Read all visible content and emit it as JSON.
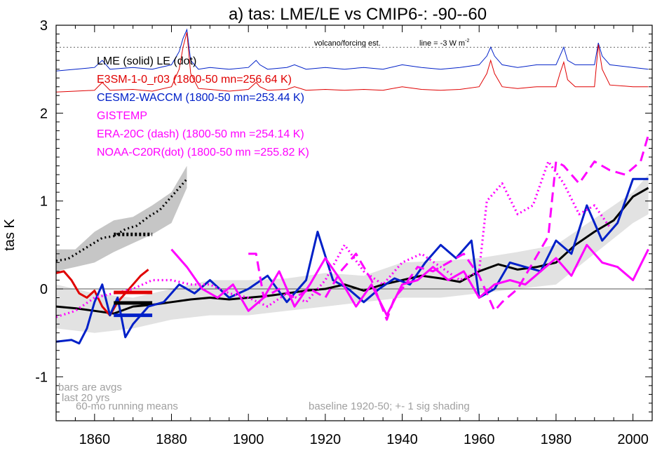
{
  "chart_data": {
    "type": "line",
    "title": "a) tas: LME/LE vs CMIP6-: -90--60",
    "ylabel": "tas K",
    "xlabel": "",
    "xlim": [
      1850,
      2005
    ],
    "ylim": [
      -1.5,
      3.0
    ],
    "x_ticks": [
      1860,
      1880,
      1900,
      1920,
      1940,
      1960,
      1980,
      2000
    ],
    "y_ticks": [
      -1,
      0,
      1,
      2,
      3
    ],
    "reference_line_y": 0,
    "forcing_threshold_y": 2.75,
    "forcing_label": "volcano/forcing est.",
    "forcing_line_label": "line = -3 W m",
    "forcing_line_label_sup": "-2",
    "legend": [
      {
        "text": "LME (solid)   LE (dot)",
        "color": "#000000"
      },
      {
        "text": "E3SM-1-0_r03 (1800-50 mn=256.64 K)",
        "color": "#e00000"
      },
      {
        "text": "CESM2-WACCM (1800-50 mn=253.44 K)",
        "color": "#0020c8"
      },
      {
        "text": "GISTEMP",
        "color": "#ff00ff"
      },
      {
        "text": "ERA-20C (dash) (1800-50 mn =254.14 K)",
        "color": "#ff00ff"
      },
      {
        "text": "NOAA-C20R(dot) (1800-50 mn =255.82 K)",
        "color": "#ff00ff"
      }
    ],
    "notes": {
      "bars": "bars are avgs",
      "bars2": "last 20 yrs",
      "running": "60-mo running means",
      "baseline": "baseline 1920-50; +- 1 sig shading"
    },
    "series": [
      {
        "name": "LME (solid)",
        "color": "#000000",
        "style": "solid",
        "x": [
          1850,
          1855,
          1860,
          1865,
          1870,
          1875,
          1880,
          1885,
          1890,
          1895,
          1900,
          1905,
          1910,
          1915,
          1920,
          1925,
          1930,
          1935,
          1940,
          1945,
          1950,
          1955,
          1960,
          1965,
          1970,
          1975,
          1980,
          1985,
          1990,
          1995,
          2000,
          2004
        ],
        "y": [
          -0.2,
          -0.22,
          -0.25,
          -0.28,
          -0.2,
          -0.18,
          -0.15,
          -0.12,
          -0.1,
          -0.12,
          -0.1,
          -0.08,
          -0.05,
          -0.02,
          0.0,
          0.05,
          -0.02,
          0.05,
          0.1,
          0.15,
          0.12,
          0.08,
          0.2,
          0.28,
          0.22,
          0.25,
          0.3,
          0.5,
          0.65,
          0.78,
          1.05,
          1.15
        ]
      },
      {
        "name": "LE (dot)",
        "color": "#000000",
        "style": "dot",
        "x": [
          1850,
          1853,
          1856,
          1859,
          1862,
          1865,
          1868,
          1871,
          1874,
          1877,
          1880,
          1882,
          1884
        ],
        "y": [
          0.32,
          0.34,
          0.42,
          0.5,
          0.58,
          0.6,
          0.68,
          0.72,
          0.82,
          0.9,
          1.05,
          1.15,
          1.25
        ]
      },
      {
        "name": "E3SM-1-0_r03",
        "color": "#e00000",
        "style": "solid",
        "x": [
          1850,
          1852,
          1854,
          1856,
          1858,
          1860,
          1862,
          1864,
          1866,
          1868,
          1870,
          1872,
          1874
        ],
        "y": [
          0.18,
          0.2,
          0.1,
          -0.05,
          -0.1,
          -0.02,
          -0.2,
          -0.3,
          -0.15,
          -0.05,
          0.05,
          0.15,
          0.22
        ]
      },
      {
        "name": "CESM2-WACCM",
        "color": "#0020c8",
        "style": "solid",
        "x": [
          1850,
          1854,
          1856,
          1858,
          1860,
          1862,
          1864,
          1866,
          1868,
          1870,
          1874,
          1878,
          1882,
          1886,
          1890,
          1895,
          1900,
          1905,
          1910,
          1915,
          1918,
          1922,
          1926,
          1930,
          1934,
          1938,
          1942,
          1946,
          1950,
          1954,
          1958,
          1960,
          1964,
          1968,
          1972,
          1976,
          1980,
          1984,
          1988,
          1992,
          1996,
          2000,
          2004
        ],
        "y": [
          -0.6,
          -0.58,
          -0.62,
          -0.45,
          -0.15,
          0.05,
          -0.3,
          -0.1,
          -0.55,
          -0.4,
          -0.2,
          -0.15,
          0.05,
          -0.05,
          0.1,
          -0.1,
          0.0,
          0.15,
          -0.15,
          0.1,
          0.65,
          0.1,
          0.0,
          -0.15,
          0.0,
          0.12,
          0.05,
          0.3,
          0.5,
          0.35,
          0.55,
          -0.1,
          0.0,
          0.3,
          0.25,
          0.2,
          0.55,
          0.4,
          0.95,
          0.55,
          0.75,
          1.25,
          1.25
        ]
      },
      {
        "name": "GISTEMP",
        "color": "#ff00ff",
        "style": "solid",
        "x": [
          1880,
          1884,
          1888,
          1892,
          1896,
          1900,
          1904,
          1908,
          1912,
          1916,
          1920,
          1924,
          1928,
          1932,
          1936,
          1940,
          1944,
          1948,
          1952,
          1956,
          1960,
          1964,
          1968,
          1972,
          1976,
          1980,
          1984,
          1988,
          1992,
          1996,
          2000,
          2004
        ],
        "y": [
          0.45,
          0.25,
          0.0,
          -0.1,
          0.05,
          -0.25,
          -0.1,
          0.2,
          -0.2,
          0.05,
          0.35,
          0.1,
          -0.2,
          0.05,
          -0.3,
          0.05,
          0.1,
          0.25,
          0.1,
          0.2,
          -0.1,
          0.05,
          0.1,
          0.05,
          0.2,
          0.35,
          0.15,
          0.5,
          0.3,
          0.25,
          0.1,
          0.45
        ]
      },
      {
        "name": "ERA-20C (dash)",
        "color": "#ff00ff",
        "style": "dash",
        "x": [
          1900,
          1902,
          1904,
          1906,
          1908,
          1912,
          1916,
          1920,
          1924,
          1928,
          1932,
          1936,
          1938,
          1940,
          1944,
          1948,
          1952,
          1956,
          1960,
          1964,
          1966,
          1970,
          1974,
          1978,
          1980,
          1982,
          1986,
          1990,
          1994,
          1998,
          2002,
          2004
        ],
        "y": [
          0.4,
          0.4,
          -0.1,
          -0.05,
          0.0,
          -0.1,
          0.0,
          -0.1,
          0.2,
          0.4,
          0.1,
          -0.35,
          -0.1,
          0.0,
          0.25,
          0.2,
          0.3,
          0.4,
          0.15,
          -0.25,
          -0.15,
          0.0,
          0.3,
          0.6,
          1.45,
          1.4,
          1.2,
          1.45,
          1.35,
          1.3,
          1.45,
          1.75
        ]
      },
      {
        "name": "NOAA-C20R(dot)",
        "color": "#ff00ff",
        "style": "dot",
        "x": [
          1850,
          1855,
          1860,
          1865,
          1870,
          1875,
          1880,
          1885,
          1890,
          1895,
          1900,
          1905,
          1910,
          1915,
          1920,
          1925,
          1930,
          1935,
          1940,
          1945,
          1950,
          1955,
          1960,
          1962,
          1966,
          1970,
          1974,
          1978,
          1982,
          1986,
          1990,
          1994
        ],
        "y": [
          -0.32,
          -0.25,
          -0.1,
          -0.05,
          0.0,
          0.1,
          0.1,
          0.05,
          0.05,
          -0.05,
          -0.1,
          -0.2,
          -0.05,
          -0.15,
          0.1,
          0.5,
          0.2,
          0.05,
          0.3,
          0.4,
          0.25,
          0.1,
          0.2,
          1.0,
          1.2,
          0.85,
          0.95,
          1.45,
          1.2,
          0.85,
          0.95,
          0.7
        ]
      }
    ],
    "shading": [
      {
        "name": "LME spread",
        "color": "#e2e2e2",
        "x": [
          1850,
          1860,
          1870,
          1880,
          1890,
          1900,
          1910,
          1920,
          1930,
          1940,
          1950,
          1960,
          1970,
          1980,
          1990,
          2000,
          2004
        ],
        "upper": [
          0.05,
          -0.05,
          -0.1,
          0.0,
          0.1,
          0.1,
          0.12,
          0.18,
          0.15,
          0.3,
          0.32,
          0.35,
          0.42,
          0.5,
          0.8,
          1.1,
          1.3
        ],
        "lower": [
          -0.45,
          -0.5,
          -0.45,
          -0.35,
          -0.3,
          -0.3,
          -0.25,
          -0.2,
          -0.15,
          -0.1,
          -0.1,
          -0.05,
          0.0,
          0.05,
          0.4,
          0.75,
          0.85
        ]
      },
      {
        "name": "LE spread",
        "color": "#c6c6c6",
        "x": [
          1850,
          1855,
          1860,
          1865,
          1870,
          1875,
          1880,
          1884
        ],
        "upper": [
          0.45,
          0.45,
          0.65,
          0.78,
          0.82,
          0.95,
          1.1,
          1.4
        ],
        "lower": [
          0.2,
          0.25,
          0.3,
          0.42,
          0.52,
          0.62,
          0.75,
          1.15
        ]
      }
    ],
    "bars": [
      {
        "series": "LME",
        "color": "#000000",
        "x0": 1865,
        "x1": 1875,
        "y": -0.16
      },
      {
        "series": "LE",
        "color": "#000000",
        "x0": 1865,
        "x1": 1875,
        "y": 0.62,
        "dotted": true
      },
      {
        "series": "E3SM-1-0_r03",
        "color": "#e00000",
        "x0": 1865,
        "x1": 1875,
        "y": -0.04
      },
      {
        "series": "CESM2-WACCM",
        "color": "#0020c8",
        "x0": 1865,
        "x1": 1875,
        "y": -0.3
      }
    ],
    "forcing": [
      {
        "name": "forcing blue",
        "color": "#0020c8",
        "x": [
          1850,
          1855,
          1860,
          1862,
          1864,
          1870,
          1875,
          1880,
          1882,
          1883,
          1884,
          1885,
          1887,
          1890,
          1895,
          1900,
          1902,
          1903,
          1905,
          1910,
          1912,
          1915,
          1920,
          1925,
          1930,
          1935,
          1940,
          1945,
          1950,
          1955,
          1960,
          1962,
          1963,
          1964,
          1966,
          1970,
          1975,
          1980,
          1981,
          1982,
          1983,
          1985,
          1990,
          1991,
          1992,
          1994,
          2000,
          2004
        ],
        "y": [
          2.48,
          2.5,
          2.52,
          2.6,
          2.5,
          2.52,
          2.5,
          2.55,
          2.7,
          2.85,
          2.95,
          2.6,
          2.5,
          2.52,
          2.5,
          2.52,
          2.6,
          2.55,
          2.5,
          2.52,
          2.55,
          2.5,
          2.52,
          2.5,
          2.52,
          2.5,
          2.55,
          2.52,
          2.5,
          2.52,
          2.55,
          2.65,
          2.75,
          2.65,
          2.55,
          2.52,
          2.55,
          2.55,
          2.65,
          2.75,
          2.6,
          2.55,
          2.55,
          2.8,
          2.65,
          2.55,
          2.52,
          2.5
        ]
      },
      {
        "name": "forcing red",
        "color": "#e00000",
        "x": [
          1850,
          1855,
          1860,
          1862,
          1864,
          1870,
          1875,
          1880,
          1882,
          1883,
          1884,
          1885,
          1887,
          1890,
          1895,
          1900,
          1902,
          1903,
          1905,
          1910,
          1912,
          1915,
          1920,
          1925,
          1930,
          1935,
          1940,
          1945,
          1950,
          1955,
          1960,
          1962,
          1963,
          1964,
          1966,
          1970,
          1975,
          1980,
          1981,
          1982,
          1983,
          1985,
          1990,
          1991,
          1992,
          1994,
          2000,
          2004
        ],
        "y": [
          2.24,
          2.25,
          2.26,
          2.35,
          2.26,
          2.27,
          2.25,
          2.3,
          2.5,
          2.75,
          2.92,
          2.45,
          2.28,
          2.27,
          2.25,
          2.27,
          2.35,
          2.3,
          2.26,
          2.27,
          2.3,
          2.26,
          2.27,
          2.26,
          2.27,
          2.26,
          2.3,
          2.27,
          2.26,
          2.27,
          2.3,
          2.45,
          2.6,
          2.45,
          2.3,
          2.28,
          2.3,
          2.3,
          2.45,
          2.58,
          2.38,
          2.3,
          2.3,
          2.78,
          2.5,
          2.32,
          2.3,
          2.3
        ]
      }
    ]
  }
}
